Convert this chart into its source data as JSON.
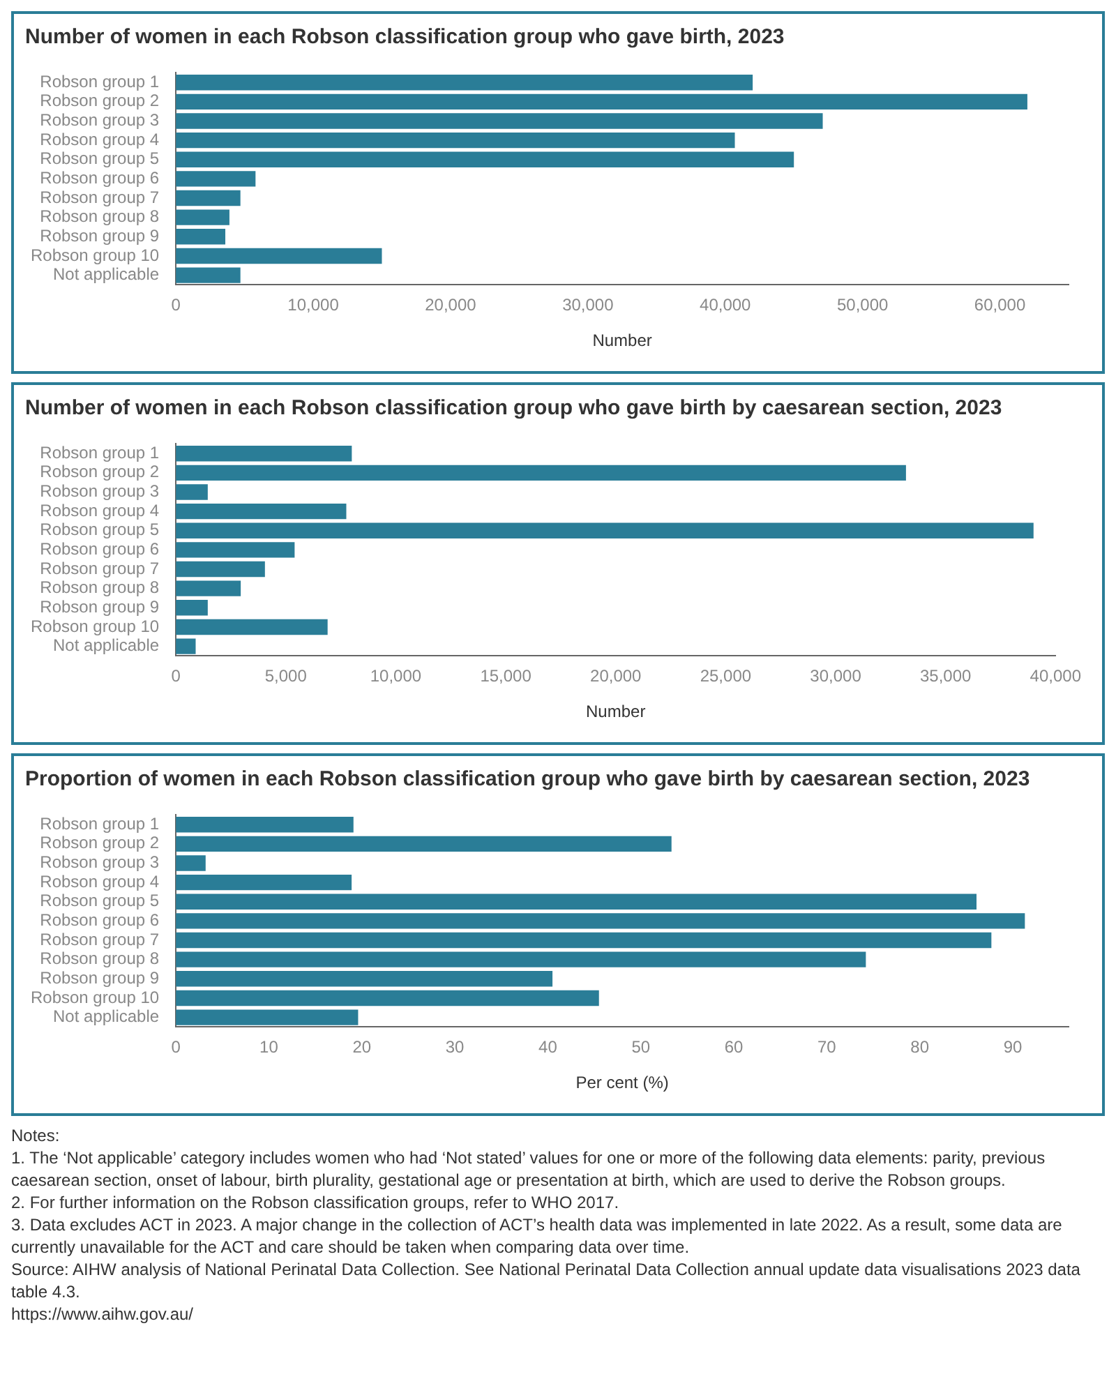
{
  "chart_data": [
    {
      "type": "bar",
      "orientation": "horizontal",
      "title": "Number of women in each Robson classification group who gave birth, 2023",
      "xlabel": "Number",
      "categories": [
        "Robson group 1",
        "Robson group 2",
        "Robson group 3",
        "Robson group 4",
        "Robson group 5",
        "Robson group 6",
        "Robson group 7",
        "Robson group 8",
        "Robson group 9",
        "Robson group 10",
        "Not applicable"
      ],
      "color": "#2a7d97",
      "values": [
        42000,
        62000,
        47100,
        40700,
        45000,
        5800,
        4700,
        3900,
        3600,
        15000,
        4700
      ],
      "xlim": [
        0,
        65000
      ],
      "xticks": [
        0,
        {
          "value": 10000,
          "label": "10,000"
        },
        {
          "value": 20000,
          "label": "20,000"
        },
        {
          "value": 30000,
          "label": "30,000"
        },
        {
          "value": 40000,
          "label": "40,000"
        },
        {
          "value": 50000,
          "label": "50,000"
        },
        {
          "value": 60000,
          "label": "60,000"
        }
      ],
      "grid": false,
      "legend": false
    },
    {
      "type": "bar",
      "orientation": "horizontal",
      "title": "Number of women in each Robson classification group who gave birth by caesarean section, 2023",
      "xlabel": "Number",
      "categories": [
        "Robson group 1",
        "Robson group 2",
        "Robson group 3",
        "Robson group 4",
        "Robson group 5",
        "Robson group 6",
        "Robson group 7",
        "Robson group 8",
        "Robson group 9",
        "Robson group 10",
        "Not applicable"
      ],
      "color": "#2a7d97",
      "values": [
        8000,
        33200,
        1450,
        7750,
        39000,
        5400,
        4050,
        2950,
        1450,
        6900,
        900
      ],
      "xlim": [
        0,
        40000
      ],
      "xticks": [
        0,
        {
          "value": 5000,
          "label": "5,000"
        },
        {
          "value": 10000,
          "label": "10,000"
        },
        {
          "value": 15000,
          "label": "15,000"
        },
        {
          "value": 20000,
          "label": "20,000"
        },
        {
          "value": 25000,
          "label": "25,000"
        },
        {
          "value": 30000,
          "label": "30,000"
        },
        {
          "value": 35000,
          "label": "35,000"
        },
        {
          "value": 40000,
          "label": "40,000"
        }
      ],
      "grid": false,
      "legend": false
    },
    {
      "type": "bar",
      "orientation": "horizontal",
      "title": "Proportion of women in each Robson classification group who gave birth by caesarean section, 2023",
      "xlabel": "Per cent (%)",
      "categories": [
        "Robson group 1",
        "Robson group 2",
        "Robson group 3",
        "Robson group 4",
        "Robson group 5",
        "Robson group 6",
        "Robson group 7",
        "Robson group 8",
        "Robson group 9",
        "Robson group 10",
        "Not applicable"
      ],
      "color": "#2a7d97",
      "values": [
        19.1,
        53.3,
        3.2,
        18.9,
        86.1,
        91.3,
        87.7,
        74.2,
        40.5,
        45.5,
        19.6
      ],
      "xlim": [
        0,
        96
      ],
      "xticks": [
        0,
        10,
        20,
        30,
        40,
        50,
        60,
        70,
        80,
        90
      ],
      "grid": false,
      "legend": false,
      "annotations": [
        "Notes:",
        "1. The ‘Not applicable’ category includes women who had ‘Not stated’ values for one or more of the following data elements: parity, previous caesarean section, onset of labour, birth plurality, gestational age or presentation at birth, which are used to derive the Robson groups.",
        "2. For further information on the Robson classification groups, refer to WHO 2017.",
        "3. Data excludes ACT in 2023. A major change in the collection of ACT’s health data was implemented in late 2022. As a result, some data are currently unavailable for the ACT and care should be taken when comparing data over time.",
        "Source: AIHW analysis of National Perinatal Data Collection. See National Perinatal Data Collection annual update data visualisations 2023 data table 4.3.",
        "https://www.aihw.gov.au/"
      ]
    }
  ]
}
